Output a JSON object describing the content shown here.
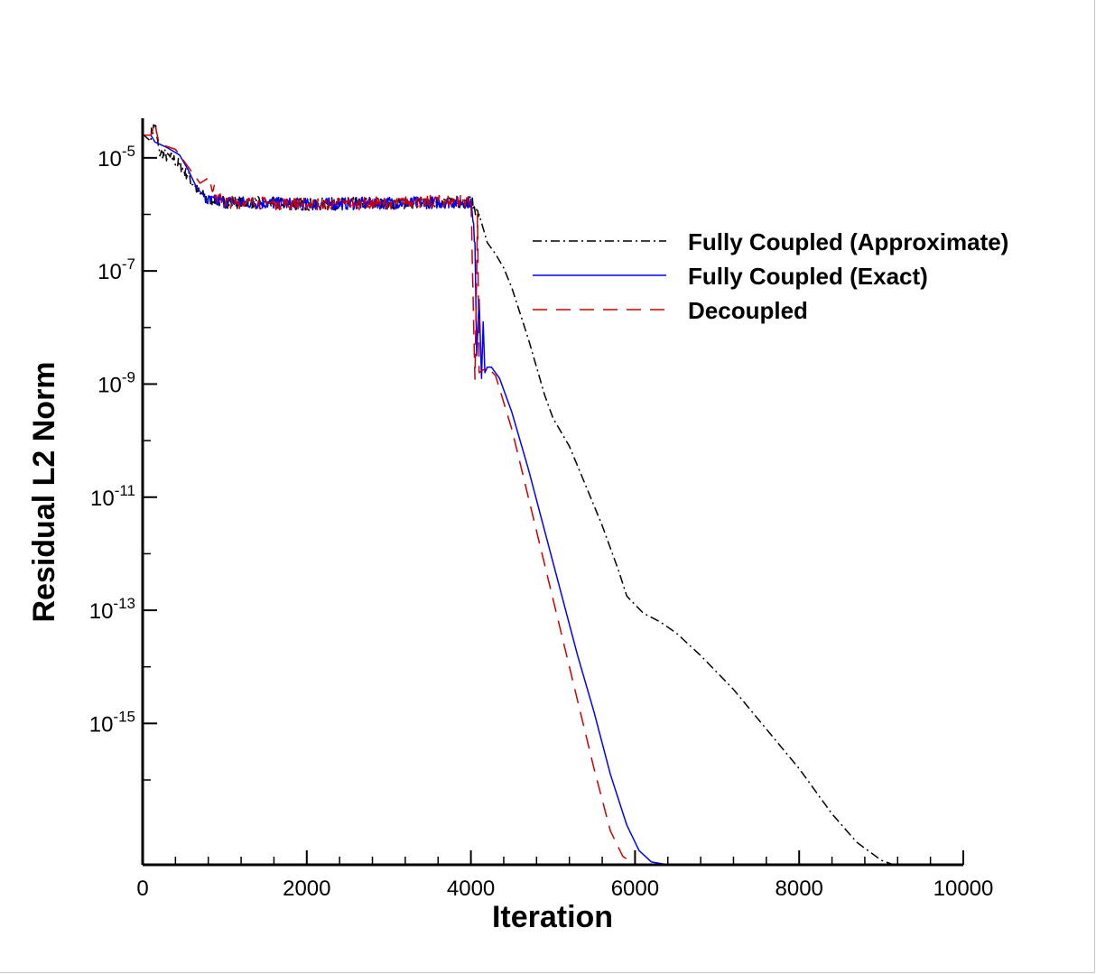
{
  "chart_data": {
    "type": "line",
    "xlabel": "Iteration",
    "ylabel": "Residual L2 Norm",
    "xlim": [
      0,
      10000
    ],
    "ylim_exponent": [
      -17.5,
      -4.3
    ],
    "yscale": "log",
    "grid": false,
    "legend_position": "right-middle",
    "x_ticks": [
      {
        "value": 0,
        "label": "0"
      },
      {
        "value": 2000,
        "label": "2000"
      },
      {
        "value": 4000,
        "label": "4000"
      },
      {
        "value": 6000,
        "label": "6000"
      },
      {
        "value": 8000,
        "label": "8000"
      },
      {
        "value": 10000,
        "label": "10000"
      }
    ],
    "y_ticks": [
      {
        "exponent": -5,
        "base": "10",
        "sup": "-5"
      },
      {
        "exponent": -7,
        "base": "10",
        "sup": "-7"
      },
      {
        "exponent": -9,
        "base": "10",
        "sup": "-9"
      },
      {
        "exponent": -11,
        "base": "10",
        "sup": "-11"
      },
      {
        "exponent": -13,
        "base": "10",
        "sup": "-13"
      },
      {
        "exponent": -15,
        "base": "10",
        "sup": "-15"
      }
    ],
    "series": [
      {
        "name": "Fully Coupled (Approximate)",
        "color": "#000000",
        "style": "dashdot",
        "noise_band": [
          4,
          4100
        ],
        "points": [
          [
            0,
            -4.58
          ],
          [
            100,
            -4.6
          ],
          [
            150,
            -4.4
          ],
          [
            200,
            -4.9
          ],
          [
            400,
            -5.05
          ],
          [
            550,
            -5.3
          ],
          [
            700,
            -5.65
          ],
          [
            800,
            -5.72
          ],
          [
            1000,
            -5.78
          ],
          [
            2000,
            -5.82
          ],
          [
            3000,
            -5.8
          ],
          [
            4000,
            -5.78
          ],
          [
            4100,
            -6.0
          ],
          [
            4200,
            -6.5
          ],
          [
            4300,
            -6.7
          ],
          [
            4400,
            -6.95
          ],
          [
            4500,
            -7.3
          ],
          [
            4700,
            -8.2
          ],
          [
            4900,
            -9.2
          ],
          [
            5000,
            -9.6
          ],
          [
            5200,
            -10.1
          ],
          [
            5400,
            -10.8
          ],
          [
            5600,
            -11.5
          ],
          [
            5800,
            -12.3
          ],
          [
            5900,
            -12.75
          ],
          [
            6100,
            -13.05
          ],
          [
            6300,
            -13.2
          ],
          [
            6500,
            -13.4
          ],
          [
            6800,
            -13.8
          ],
          [
            7200,
            -14.4
          ],
          [
            7600,
            -15.1
          ],
          [
            8000,
            -15.8
          ],
          [
            8400,
            -16.6
          ],
          [
            8700,
            -17.1
          ],
          [
            9000,
            -17.42
          ],
          [
            9150,
            -17.5
          ]
        ]
      },
      {
        "name": "Fully Coupled (Exact)",
        "color": "#0000ff",
        "style": "solid",
        "noise_band": [
          750,
          4050
        ],
        "points": [
          [
            0,
            -4.6
          ],
          [
            100,
            -4.6
          ],
          [
            150,
            -4.72
          ],
          [
            300,
            -4.82
          ],
          [
            450,
            -4.95
          ],
          [
            550,
            -5.2
          ],
          [
            650,
            -5.5
          ],
          [
            700,
            -5.6
          ],
          [
            750,
            -5.75
          ],
          [
            1000,
            -5.78
          ],
          [
            2000,
            -5.82
          ],
          [
            3000,
            -5.8
          ],
          [
            4000,
            -5.78
          ],
          [
            4050,
            -6.5
          ],
          [
            4070,
            -8.5
          ],
          [
            4100,
            -7.5
          ],
          [
            4130,
            -8.9
          ],
          [
            4150,
            -7.9
          ],
          [
            4170,
            -8.8
          ],
          [
            4200,
            -8.7
          ],
          [
            4250,
            -8.7
          ],
          [
            4350,
            -8.9
          ],
          [
            4500,
            -9.5
          ],
          [
            4700,
            -10.5
          ],
          [
            4900,
            -11.6
          ],
          [
            5100,
            -12.7
          ],
          [
            5300,
            -13.8
          ],
          [
            5500,
            -14.8
          ],
          [
            5700,
            -15.9
          ],
          [
            5900,
            -16.8
          ],
          [
            6050,
            -17.25
          ],
          [
            6200,
            -17.45
          ],
          [
            6400,
            -17.5
          ],
          [
            7000,
            -17.5
          ]
        ]
      },
      {
        "name": "Decoupled",
        "color": "#cc0000",
        "style": "dashed",
        "noise_band": [
          750,
          4100
        ],
        "points": [
          [
            0,
            -4.6
          ],
          [
            100,
            -4.6
          ],
          [
            150,
            -4.4
          ],
          [
            200,
            -4.75
          ],
          [
            400,
            -4.85
          ],
          [
            550,
            -5.15
          ],
          [
            700,
            -5.45
          ],
          [
            800,
            -5.3
          ],
          [
            900,
            -5.7
          ],
          [
            1000,
            -5.78
          ],
          [
            2000,
            -5.82
          ],
          [
            3000,
            -5.8
          ],
          [
            4000,
            -5.75
          ],
          [
            4050,
            -8.9
          ],
          [
            4080,
            -6.0
          ],
          [
            4100,
            -8.8
          ],
          [
            4200,
            -8.7
          ],
          [
            4300,
            -8.85
          ],
          [
            4500,
            -9.8
          ],
          [
            4700,
            -11.0
          ],
          [
            4900,
            -12.2
          ],
          [
            5100,
            -13.4
          ],
          [
            5300,
            -14.6
          ],
          [
            5500,
            -15.8
          ],
          [
            5700,
            -16.9
          ],
          [
            5850,
            -17.35
          ],
          [
            6000,
            -17.5
          ]
        ]
      }
    ]
  }
}
